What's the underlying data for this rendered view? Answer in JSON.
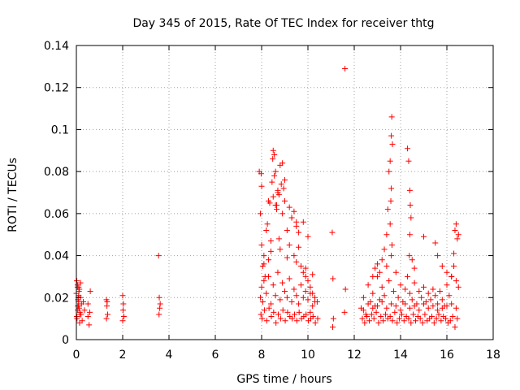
{
  "chart_data": {
    "type": "scatter",
    "title": "Day 345 of 2015, Rate Of TEC Index for receiver thtg",
    "xlabel": "GPS time / hours",
    "ylabel": "ROTI / TECUs",
    "xlim": [
      0,
      18
    ],
    "ylim": [
      0,
      0.14
    ],
    "xticks": [
      0,
      2,
      4,
      6,
      8,
      10,
      12,
      14,
      16,
      18
    ],
    "yticks": [
      0,
      0.02,
      0.04,
      0.06,
      0.08,
      0.1,
      0.12,
      0.14
    ],
    "xtick_labels": [
      "0",
      "2",
      "4",
      "6",
      "8",
      "10",
      "12",
      "14",
      "16",
      "18"
    ],
    "ytick_labels": [
      "0",
      "0.02",
      "0.04",
      "0.06",
      "0.08",
      "0.1",
      "0.12",
      "0.14"
    ],
    "grid": true,
    "marker": "+",
    "color": "#ff0000",
    "series": [
      {
        "name": "ROTI",
        "x": [
          0.0,
          0.02,
          0.05,
          0.08,
          0.1,
          0.12,
          0.15,
          0.03,
          0.06,
          0.09,
          0.13,
          0.18,
          0.2,
          0.22,
          0.25,
          0.3,
          0.35,
          0.05,
          0.1,
          0.15,
          0.18,
          0.02,
          0.07,
          0.11,
          0.14,
          0.06,
          0.1,
          0.5,
          0.55,
          0.6,
          0.5,
          0.58,
          1.3,
          1.32,
          1.35,
          1.3,
          1.33,
          2.0,
          2.02,
          2.05,
          2.03,
          2.0,
          3.55,
          3.58,
          3.6,
          3.57,
          3.62,
          7.9,
          7.95,
          8.0,
          8.05,
          8.1,
          8.15,
          8.2,
          8.25,
          8.3,
          8.35,
          8.4,
          8.45,
          8.5,
          8.55,
          8.6,
          8.65,
          8.7,
          8.75,
          8.8,
          8.85,
          8.9,
          8.95,
          9.0,
          9.1,
          9.2,
          9.3,
          9.4,
          9.5,
          9.6,
          9.7,
          9.8,
          9.9,
          10.0,
          10.1,
          10.2,
          10.3,
          10.4,
          7.95,
          8.0,
          8.05,
          8.1,
          8.2,
          8.3,
          8.4,
          8.5,
          8.6,
          8.7,
          8.8,
          8.9,
          9.0,
          9.1,
          9.2,
          9.3,
          9.4,
          9.5,
          9.6,
          9.7,
          9.8,
          9.9,
          10.0,
          10.1,
          10.2,
          10.3,
          7.97,
          8.02,
          8.12,
          8.22,
          8.32,
          8.42,
          8.52,
          8.62,
          8.72,
          8.82,
          8.92,
          9.02,
          9.12,
          9.22,
          9.32,
          9.42,
          9.52,
          9.62,
          9.72,
          9.82,
          9.92,
          10.02,
          10.12,
          10.22,
          10.32,
          10.42,
          7.98,
          8.0,
          8.3,
          8.48,
          8.5,
          8.55,
          8.6,
          8.65,
          8.7,
          8.75,
          8.9,
          9.0,
          9.2,
          9.3,
          9.4,
          9.5,
          9.6,
          9.8,
          10.0,
          8.1,
          8.4,
          8.8,
          9.1,
          9.5,
          9.9,
          10.2,
          10.1,
          11.05,
          11.08,
          11.1,
          11.07,
          11.6,
          11.62,
          11.58,
          12.3,
          12.4,
          12.5,
          12.6,
          12.7,
          12.8,
          12.9,
          13.0,
          13.1,
          13.2,
          13.3,
          13.4,
          13.5,
          13.6,
          13.7,
          13.8,
          13.9,
          14.0,
          14.1,
          14.2,
          14.3,
          14.4,
          14.5,
          14.6,
          14.7,
          14.8,
          14.9,
          15.0,
          15.1,
          15.2,
          15.3,
          15.4,
          15.5,
          15.6,
          15.7,
          15.8,
          15.9,
          16.0,
          16.1,
          16.2,
          16.3,
          16.4,
          16.5,
          12.35,
          12.45,
          12.55,
          12.65,
          12.75,
          12.85,
          12.95,
          13.05,
          13.15,
          13.25,
          13.35,
          13.45,
          13.55,
          13.65,
          13.75,
          13.85,
          13.95,
          14.05,
          14.15,
          14.25,
          14.35,
          14.45,
          14.55,
          14.65,
          14.75,
          14.85,
          14.95,
          15.05,
          15.15,
          15.25,
          15.35,
          15.45,
          15.55,
          15.65,
          15.75,
          15.85,
          15.95,
          16.05,
          16.15,
          16.25,
          16.35,
          16.45,
          12.4,
          12.6,
          12.8,
          13.0,
          13.2,
          13.4,
          13.6,
          13.8,
          14.0,
          14.2,
          14.4,
          14.6,
          14.8,
          15.0,
          15.2,
          15.4,
          15.6,
          15.8,
          16.0,
          16.2,
          16.4,
          13.4,
          13.45,
          13.5,
          13.55,
          13.6,
          13.62,
          13.65,
          13.6,
          13.58,
          13.63,
          13.55,
          14.3,
          14.35,
          14.4,
          14.42,
          14.45,
          14.4,
          14.38,
          14.5,
          14.6,
          12.8,
          12.9,
          13.0,
          13.1,
          13.2,
          13.3,
          15.0,
          15.5,
          15.6,
          15.8,
          16.0,
          16.2,
          16.3,
          16.35,
          16.4,
          16.45,
          16.5
        ],
        "y": [
          0.022,
          0.028,
          0.025,
          0.02,
          0.018,
          0.015,
          0.012,
          0.01,
          0.014,
          0.016,
          0.024,
          0.02,
          0.012,
          0.017,
          0.009,
          0.018,
          0.014,
          0.026,
          0.021,
          0.013,
          0.027,
          0.011,
          0.019,
          0.023,
          0.008,
          0.016,
          0.025,
          0.011,
          0.007,
          0.023,
          0.017,
          0.013,
          0.019,
          0.016,
          0.012,
          0.01,
          0.018,
          0.021,
          0.014,
          0.011,
          0.017,
          0.009,
          0.04,
          0.02,
          0.015,
          0.012,
          0.017,
          0.08,
          0.06,
          0.045,
          0.035,
          0.04,
          0.03,
          0.052,
          0.055,
          0.038,
          0.065,
          0.042,
          0.075,
          0.09,
          0.088,
          0.08,
          0.064,
          0.07,
          0.048,
          0.083,
          0.074,
          0.06,
          0.072,
          0.066,
          0.052,
          0.045,
          0.058,
          0.04,
          0.056,
          0.044,
          0.035,
          0.032,
          0.03,
          0.028,
          0.025,
          0.022,
          0.02,
          0.018,
          0.02,
          0.025,
          0.018,
          0.028,
          0.022,
          0.03,
          0.017,
          0.026,
          0.021,
          0.032,
          0.019,
          0.027,
          0.023,
          0.02,
          0.029,
          0.018,
          0.024,
          0.021,
          0.017,
          0.026,
          0.02,
          0.023,
          0.019,
          0.022,
          0.016,
          0.018,
          0.012,
          0.01,
          0.014,
          0.009,
          0.015,
          0.011,
          0.013,
          0.008,
          0.012,
          0.01,
          0.014,
          0.009,
          0.013,
          0.011,
          0.01,
          0.012,
          0.009,
          0.013,
          0.01,
          0.011,
          0.012,
          0.009,
          0.01,
          0.011,
          0.008,
          0.01,
          0.079,
          0.073,
          0.066,
          0.086,
          0.068,
          0.078,
          0.064,
          0.062,
          0.071,
          0.069,
          0.084,
          0.076,
          0.063,
          0.058,
          0.061,
          0.054,
          0.051,
          0.056,
          0.049,
          0.036,
          0.047,
          0.043,
          0.039,
          0.037,
          0.034,
          0.031,
          0.013,
          0.051,
          0.029,
          0.01,
          0.006,
          0.129,
          0.024,
          0.013,
          0.015,
          0.02,
          0.012,
          0.026,
          0.018,
          0.022,
          0.016,
          0.03,
          0.019,
          0.025,
          0.021,
          0.035,
          0.028,
          0.04,
          0.023,
          0.032,
          0.02,
          0.026,
          0.018,
          0.024,
          0.03,
          0.022,
          0.019,
          0.027,
          0.017,
          0.023,
          0.02,
          0.025,
          0.018,
          0.022,
          0.019,
          0.024,
          0.021,
          0.017,
          0.023,
          0.019,
          0.016,
          0.026,
          0.021,
          0.03,
          0.035,
          0.028,
          0.025,
          0.01,
          0.008,
          0.011,
          0.009,
          0.012,
          0.01,
          0.013,
          0.008,
          0.011,
          0.009,
          0.012,
          0.01,
          0.011,
          0.009,
          0.013,
          0.008,
          0.01,
          0.012,
          0.009,
          0.011,
          0.01,
          0.008,
          0.012,
          0.009,
          0.011,
          0.01,
          0.008,
          0.012,
          0.009,
          0.01,
          0.011,
          0.008,
          0.01,
          0.012,
          0.009,
          0.011,
          0.01,
          0.008,
          0.009,
          0.011,
          0.006,
          0.01,
          0.014,
          0.017,
          0.015,
          0.016,
          0.018,
          0.015,
          0.017,
          0.016,
          0.014,
          0.017,
          0.015,
          0.016,
          0.014,
          0.017,
          0.015,
          0.016,
          0.014,
          0.015,
          0.016,
          0.017,
          0.015,
          0.05,
          0.062,
          0.08,
          0.085,
          0.097,
          0.106,
          0.093,
          0.072,
          0.066,
          0.045,
          0.055,
          0.091,
          0.085,
          0.071,
          0.064,
          0.058,
          0.05,
          0.04,
          0.038,
          0.034,
          0.03,
          0.034,
          0.036,
          0.032,
          0.038,
          0.043,
          0.049,
          0.046,
          0.04,
          0.035,
          0.032,
          0.03,
          0.041,
          0.052,
          0.055,
          0.048,
          0.05
        ]
      }
    ]
  }
}
